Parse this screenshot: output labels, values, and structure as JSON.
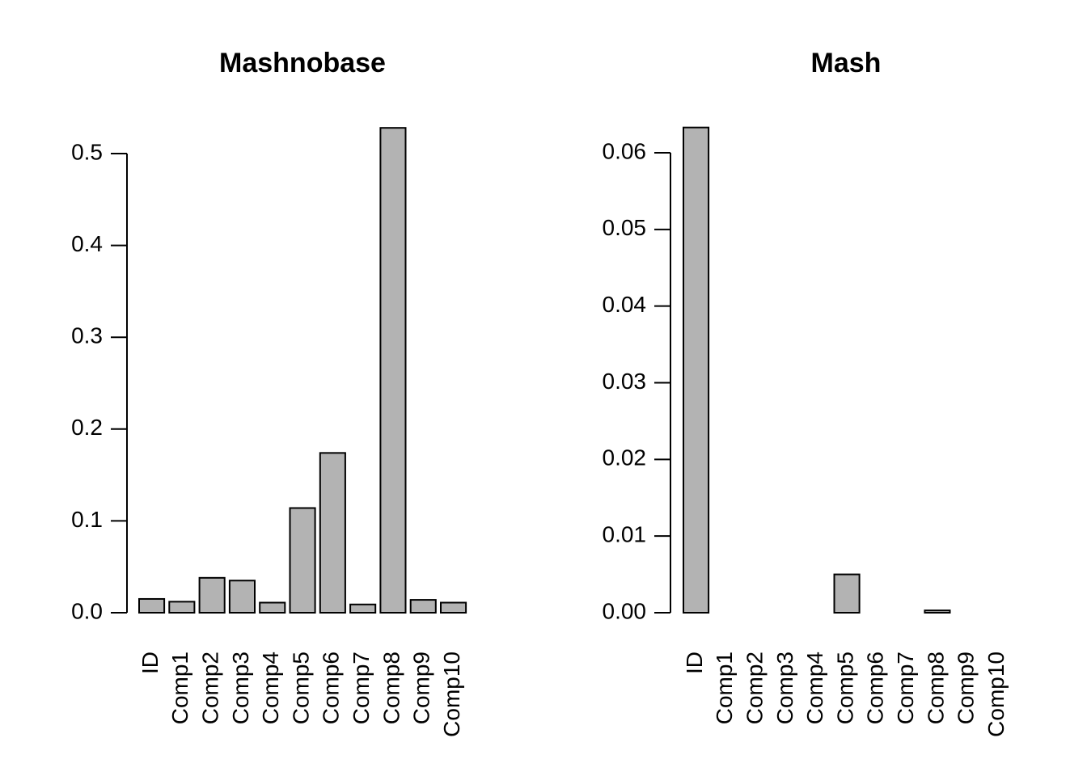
{
  "chart_data": [
    {
      "type": "bar",
      "title": "Mashnobase",
      "xlabel": "",
      "ylabel": "",
      "categories": [
        "ID",
        "Comp1",
        "Comp2",
        "Comp3",
        "Comp4",
        "Comp5",
        "Comp6",
        "Comp7",
        "Comp8",
        "Comp9",
        "Comp10"
      ],
      "values": [
        0.015,
        0.012,
        0.038,
        0.035,
        0.011,
        0.114,
        0.174,
        0.009,
        0.528,
        0.014,
        0.011
      ],
      "ylim": [
        0,
        0.5
      ],
      "yticks": [
        "0.0",
        "0.1",
        "0.2",
        "0.3",
        "0.4",
        "0.5"
      ],
      "bar_color": "#b3b3b3",
      "grid": false
    },
    {
      "type": "bar",
      "title": "Mash",
      "xlabel": "",
      "ylabel": "",
      "categories": [
        "ID",
        "Comp1",
        "Comp2",
        "Comp3",
        "Comp4",
        "Comp5",
        "Comp6",
        "Comp7",
        "Comp8",
        "Comp9",
        "Comp10"
      ],
      "values": [
        0.0633,
        0.0,
        0.0,
        0.0,
        0.0,
        0.005,
        0.0,
        0.0,
        0.0003,
        0.0,
        0.0
      ],
      "ylim": [
        0,
        0.06
      ],
      "yticks": [
        "0.00",
        "0.01",
        "0.02",
        "0.03",
        "0.04",
        "0.05",
        "0.06"
      ],
      "bar_color": "#b3b3b3",
      "grid": false
    }
  ]
}
